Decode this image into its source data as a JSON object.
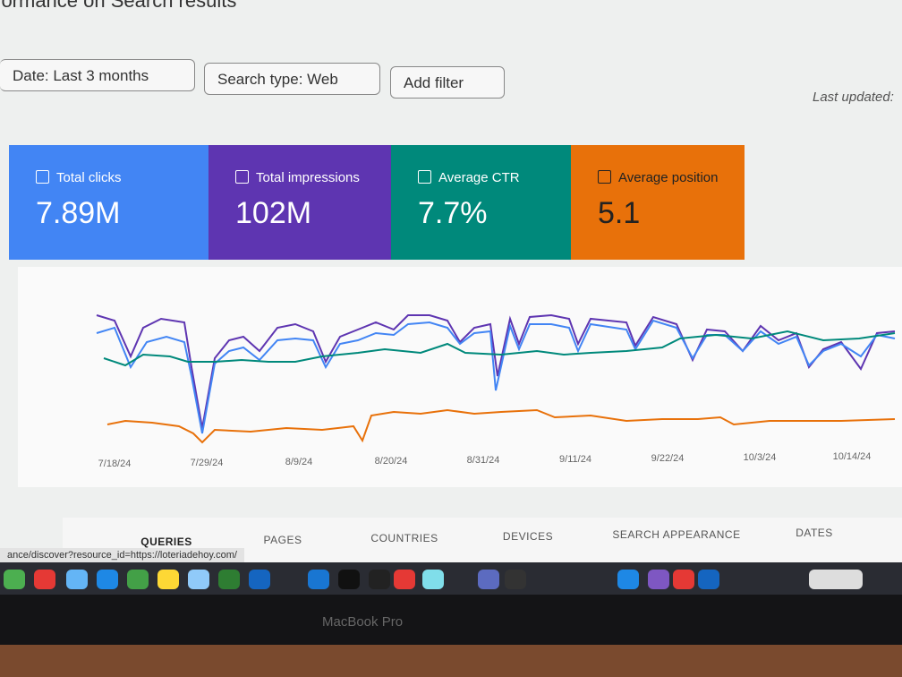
{
  "header": {
    "title": "rformance on Search results"
  },
  "filters": [
    "Date: Last 3 months",
    "Search type: Web",
    "Add filter"
  ],
  "last_updated": "Last updated:",
  "metrics": [
    {
      "label": "Total clicks",
      "value": "7.89M"
    },
    {
      "label": "Total impressions",
      "value": "102M"
    },
    {
      "label": "Average CTR",
      "value": "7.7%"
    },
    {
      "label": "Average position",
      "value": "5.1"
    }
  ],
  "x_labels": [
    "7/18/24",
    "7/29/24",
    "8/9/24",
    "8/20/24",
    "8/31/24",
    "9/11/24",
    "9/22/24",
    "10/3/24",
    "10/14/24"
  ],
  "tabs": [
    "QUERIES",
    "PAGES",
    "COUNTRIES",
    "DEVICES",
    "SEARCH APPEARANCE",
    "DATES"
  ],
  "status_url": "ance/discover?resource_id=https://loteriadehoy.com/",
  "laptop": "MacBook Pro"
}
